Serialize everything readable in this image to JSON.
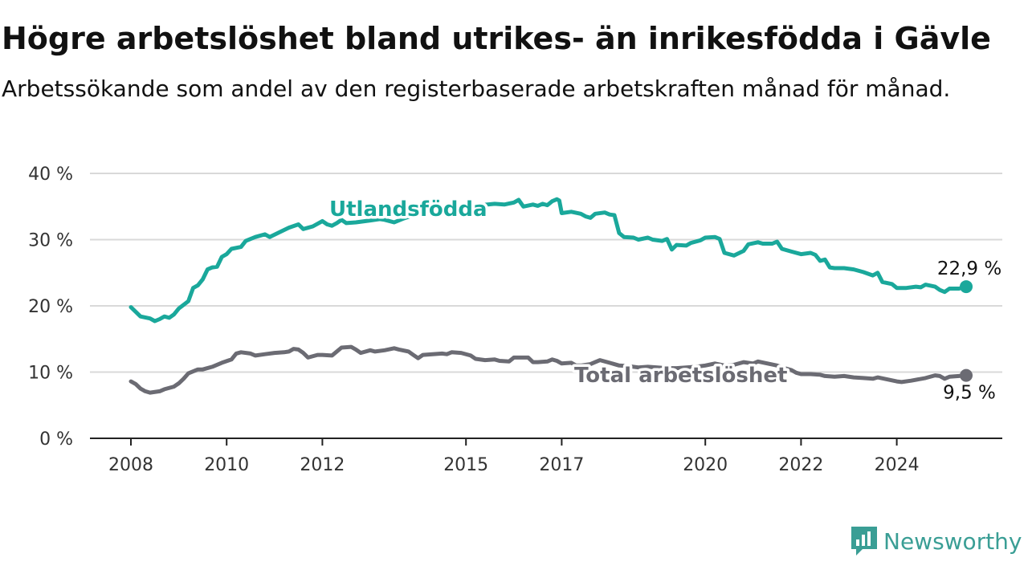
{
  "title": "Högre arbetslöshet bland utrikes- än inrikesfödda i Gävle",
  "subtitle": "Arbetssökande som andel av den registerbaserade arbetskraften månad för månad.",
  "logo": {
    "text": "Newsworthy",
    "icon": "bar-chart-speech-bubble-icon",
    "color": "#3a9e95"
  },
  "chart_data": {
    "type": "line",
    "xlim": [
      2008.0,
      2025.5
    ],
    "ylim": [
      0,
      40
    ],
    "x_ticks": [
      {
        "value": 2008,
        "label": "2008"
      },
      {
        "value": 2010,
        "label": "2010"
      },
      {
        "value": 2012,
        "label": "2012"
      },
      {
        "value": 2015,
        "label": "2015"
      },
      {
        "value": 2017,
        "label": "2017"
      },
      {
        "value": 2020,
        "label": "2020"
      },
      {
        "value": 2022,
        "label": "2022"
      },
      {
        "value": 2024,
        "label": "2024"
      }
    ],
    "y_ticks": [
      {
        "value": 0,
        "label": "0 %"
      },
      {
        "value": 10,
        "label": "10 %"
      },
      {
        "value": 20,
        "label": "20 %"
      },
      {
        "value": 30,
        "label": "30 %"
      },
      {
        "value": 40,
        "label": "40 %"
      }
    ],
    "grid": true,
    "series": [
      {
        "name": "Utlandsfödda",
        "color": "#1aa89b",
        "end_label": "22,9 %",
        "points": [
          [
            2008.0,
            19.8
          ],
          [
            2008.2,
            18.4
          ],
          [
            2008.4,
            18.1
          ],
          [
            2008.5,
            17.7
          ],
          [
            2008.6,
            18.0
          ],
          [
            2008.7,
            18.4
          ],
          [
            2008.8,
            18.2
          ],
          [
            2008.9,
            18.7
          ],
          [
            2009.0,
            19.6
          ],
          [
            2009.2,
            20.7
          ],
          [
            2009.3,
            22.7
          ],
          [
            2009.4,
            23.1
          ],
          [
            2009.5,
            24.0
          ],
          [
            2009.6,
            25.5
          ],
          [
            2009.7,
            25.8
          ],
          [
            2009.8,
            25.9
          ],
          [
            2009.9,
            27.4
          ],
          [
            2010.0,
            27.8
          ],
          [
            2010.1,
            28.6
          ],
          [
            2010.3,
            28.9
          ],
          [
            2010.4,
            29.8
          ],
          [
            2010.6,
            30.4
          ],
          [
            2010.8,
            30.8
          ],
          [
            2010.9,
            30.4
          ],
          [
            2011.1,
            31.1
          ],
          [
            2011.3,
            31.8
          ],
          [
            2011.5,
            32.3
          ],
          [
            2011.6,
            31.6
          ],
          [
            2011.8,
            32.0
          ],
          [
            2012.0,
            32.8
          ],
          [
            2012.1,
            32.3
          ],
          [
            2012.2,
            32.1
          ],
          [
            2012.3,
            32.5
          ],
          [
            2012.4,
            33.0
          ],
          [
            2012.5,
            32.5
          ],
          [
            2012.7,
            32.6
          ],
          [
            2013.0,
            32.9
          ],
          [
            2013.2,
            33.1
          ],
          [
            2013.3,
            33.0
          ],
          [
            2013.5,
            32.6
          ],
          [
            2013.7,
            33.2
          ],
          [
            2014.0,
            33.9
          ],
          [
            2014.3,
            34.2
          ],
          [
            2014.6,
            34.6
          ],
          [
            2015.0,
            34.9
          ],
          [
            2015.3,
            35.2
          ],
          [
            2015.6,
            35.4
          ],
          [
            2015.8,
            35.3
          ],
          [
            2016.0,
            35.6
          ],
          [
            2016.1,
            36.0
          ],
          [
            2016.2,
            35.0
          ],
          [
            2016.4,
            35.3
          ],
          [
            2016.5,
            35.1
          ],
          [
            2016.6,
            35.4
          ],
          [
            2016.7,
            35.2
          ],
          [
            2016.8,
            35.8
          ],
          [
            2016.9,
            36.1
          ],
          [
            2016.95,
            35.9
          ],
          [
            2017.0,
            34.0
          ],
          [
            2017.2,
            34.2
          ],
          [
            2017.4,
            33.9
          ],
          [
            2017.5,
            33.5
          ],
          [
            2017.6,
            33.3
          ],
          [
            2017.7,
            33.9
          ],
          [
            2017.9,
            34.1
          ],
          [
            2018.0,
            33.8
          ],
          [
            2018.1,
            33.7
          ],
          [
            2018.2,
            31.0
          ],
          [
            2018.3,
            30.4
          ],
          [
            2018.5,
            30.3
          ],
          [
            2018.6,
            30.0
          ],
          [
            2018.8,
            30.3
          ],
          [
            2018.9,
            30.0
          ],
          [
            2019.1,
            29.8
          ],
          [
            2019.2,
            30.1
          ],
          [
            2019.3,
            28.5
          ],
          [
            2019.4,
            29.2
          ],
          [
            2019.6,
            29.1
          ],
          [
            2019.7,
            29.5
          ],
          [
            2019.9,
            29.9
          ],
          [
            2020.0,
            30.3
          ],
          [
            2020.2,
            30.4
          ],
          [
            2020.3,
            30.1
          ],
          [
            2020.4,
            28.0
          ],
          [
            2020.6,
            27.6
          ],
          [
            2020.8,
            28.3
          ],
          [
            2020.9,
            29.3
          ],
          [
            2021.1,
            29.6
          ],
          [
            2021.2,
            29.4
          ],
          [
            2021.4,
            29.4
          ],
          [
            2021.5,
            29.7
          ],
          [
            2021.6,
            28.6
          ],
          [
            2021.8,
            28.2
          ],
          [
            2022.0,
            27.8
          ],
          [
            2022.2,
            28.0
          ],
          [
            2022.3,
            27.7
          ],
          [
            2022.4,
            26.8
          ],
          [
            2022.5,
            27.0
          ],
          [
            2022.6,
            25.8
          ],
          [
            2022.7,
            25.7
          ],
          [
            2022.9,
            25.7
          ],
          [
            2023.1,
            25.5
          ],
          [
            2023.3,
            25.1
          ],
          [
            2023.5,
            24.6
          ],
          [
            2023.6,
            25.0
          ],
          [
            2023.7,
            23.6
          ],
          [
            2023.9,
            23.3
          ],
          [
            2024.0,
            22.7
          ],
          [
            2024.2,
            22.7
          ],
          [
            2024.4,
            22.9
          ],
          [
            2024.5,
            22.8
          ],
          [
            2024.6,
            23.2
          ],
          [
            2024.8,
            22.9
          ],
          [
            2024.9,
            22.4
          ],
          [
            2025.0,
            22.1
          ],
          [
            2025.1,
            22.6
          ],
          [
            2025.3,
            22.6
          ],
          [
            2025.45,
            22.9
          ]
        ]
      },
      {
        "name": "Total arbetslöshet",
        "color": "#6b6b73",
        "end_label": "9,5 %",
        "points": [
          [
            2008.0,
            8.6
          ],
          [
            2008.1,
            8.2
          ],
          [
            2008.2,
            7.5
          ],
          [
            2008.3,
            7.1
          ],
          [
            2008.4,
            6.9
          ],
          [
            2008.6,
            7.1
          ],
          [
            2008.7,
            7.4
          ],
          [
            2008.9,
            7.8
          ],
          [
            2009.0,
            8.3
          ],
          [
            2009.1,
            9.0
          ],
          [
            2009.2,
            9.8
          ],
          [
            2009.4,
            10.4
          ],
          [
            2009.5,
            10.4
          ],
          [
            2009.7,
            10.8
          ],
          [
            2009.9,
            11.4
          ],
          [
            2010.1,
            11.9
          ],
          [
            2010.2,
            12.8
          ],
          [
            2010.3,
            13.0
          ],
          [
            2010.5,
            12.8
          ],
          [
            2010.6,
            12.5
          ],
          [
            2010.8,
            12.7
          ],
          [
            2011.0,
            12.9
          ],
          [
            2011.2,
            13.0
          ],
          [
            2011.3,
            13.1
          ],
          [
            2011.4,
            13.5
          ],
          [
            2011.5,
            13.4
          ],
          [
            2011.6,
            12.9
          ],
          [
            2011.7,
            12.2
          ],
          [
            2011.9,
            12.6
          ],
          [
            2012.0,
            12.6
          ],
          [
            2012.2,
            12.5
          ],
          [
            2012.3,
            13.1
          ],
          [
            2012.4,
            13.7
          ],
          [
            2012.6,
            13.8
          ],
          [
            2012.7,
            13.4
          ],
          [
            2012.8,
            12.9
          ],
          [
            2013.0,
            13.3
          ],
          [
            2013.1,
            13.1
          ],
          [
            2013.3,
            13.3
          ],
          [
            2013.5,
            13.6
          ],
          [
            2013.6,
            13.4
          ],
          [
            2013.8,
            13.1
          ],
          [
            2013.9,
            12.6
          ],
          [
            2014.0,
            12.1
          ],
          [
            2014.1,
            12.6
          ],
          [
            2014.3,
            12.7
          ],
          [
            2014.5,
            12.8
          ],
          [
            2014.6,
            12.7
          ],
          [
            2014.7,
            13.0
          ],
          [
            2014.9,
            12.9
          ],
          [
            2015.1,
            12.5
          ],
          [
            2015.2,
            12.0
          ],
          [
            2015.4,
            11.8
          ],
          [
            2015.6,
            11.9
          ],
          [
            2015.7,
            11.7
          ],
          [
            2015.9,
            11.6
          ],
          [
            2016.0,
            12.2
          ],
          [
            2016.1,
            12.2
          ],
          [
            2016.3,
            12.2
          ],
          [
            2016.4,
            11.5
          ],
          [
            2016.5,
            11.5
          ],
          [
            2016.7,
            11.6
          ],
          [
            2016.8,
            11.9
          ],
          [
            2016.9,
            11.7
          ],
          [
            2017.0,
            11.3
          ],
          [
            2017.2,
            11.4
          ],
          [
            2017.3,
            11.0
          ],
          [
            2017.4,
            11.0
          ],
          [
            2017.6,
            11.2
          ],
          [
            2017.7,
            11.5
          ],
          [
            2017.8,
            11.8
          ],
          [
            2018.0,
            11.4
          ],
          [
            2018.2,
            11.0
          ],
          [
            2018.4,
            10.9
          ],
          [
            2018.6,
            10.7
          ],
          [
            2018.8,
            10.8
          ],
          [
            2019.0,
            10.7
          ],
          [
            2019.2,
            10.6
          ],
          [
            2019.4,
            10.6
          ],
          [
            2019.6,
            10.7
          ],
          [
            2019.8,
            10.8
          ],
          [
            2020.0,
            11.0
          ],
          [
            2020.2,
            11.3
          ],
          [
            2020.4,
            11.0
          ],
          [
            2020.6,
            11.1
          ],
          [
            2020.8,
            11.5
          ],
          [
            2021.0,
            11.3
          ],
          [
            2021.1,
            11.6
          ],
          [
            2021.3,
            11.3
          ],
          [
            2021.5,
            11.0
          ],
          [
            2021.6,
            10.7
          ],
          [
            2021.8,
            10.3
          ],
          [
            2021.9,
            9.9
          ],
          [
            2022.0,
            9.7
          ],
          [
            2022.2,
            9.7
          ],
          [
            2022.4,
            9.6
          ],
          [
            2022.5,
            9.4
          ],
          [
            2022.7,
            9.3
          ],
          [
            2022.9,
            9.4
          ],
          [
            2023.1,
            9.2
          ],
          [
            2023.3,
            9.1
          ],
          [
            2023.5,
            9.0
          ],
          [
            2023.6,
            9.2
          ],
          [
            2023.8,
            8.9
          ],
          [
            2024.0,
            8.6
          ],
          [
            2024.1,
            8.5
          ],
          [
            2024.3,
            8.7
          ],
          [
            2024.6,
            9.1
          ],
          [
            2024.8,
            9.5
          ],
          [
            2024.9,
            9.4
          ],
          [
            2025.0,
            9.0
          ],
          [
            2025.1,
            9.3
          ],
          [
            2025.3,
            9.4
          ],
          [
            2025.45,
            9.5
          ]
        ]
      }
    ]
  }
}
